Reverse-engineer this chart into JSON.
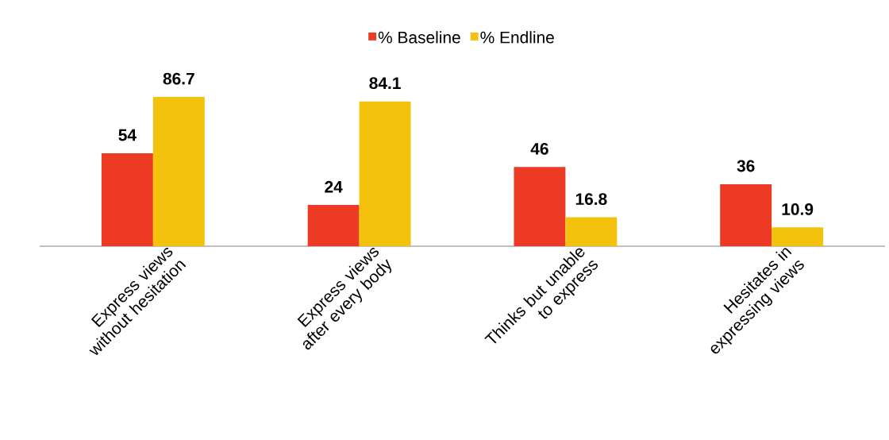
{
  "chart_data": {
    "type": "bar",
    "categories": [
      "Express views without hesitation",
      "Express views after every body",
      "Thinks but unable to express",
      "Hesitates in expressing views"
    ],
    "series": [
      {
        "name": "% Baseline",
        "color": "#ec3a25",
        "values": [
          54,
          24,
          46,
          36
        ]
      },
      {
        "name": "% Endline",
        "color": "#f4c20d",
        "values": [
          86.7,
          84.1,
          16.8,
          10.9
        ]
      }
    ],
    "data_labels": true,
    "legend": "top",
    "tick_labels": "x"
  }
}
